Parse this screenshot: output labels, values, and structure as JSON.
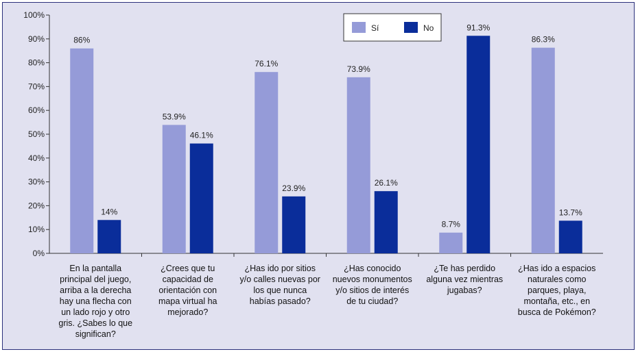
{
  "chart_data": {
    "type": "bar",
    "categories": [
      "En la pantalla\nprincipal del juego,\narriba a la derecha\nhay una flecha con\nun lado rojo y otro\ngris. ¿Sabes lo que\nsignifican?",
      "¿Crees que tu\ncapacidad de\norientación con\nmapa virtual ha\nmejorado?",
      "¿Has ido por sitios\ny/o calles nuevas por\nlos que nunca\nhabías pasado?",
      "¿Has conocido\nnuevos monumentos\ny/o sitios de interés\nde tu ciudad?",
      "¿Te has perdido\nalguna vez mientras\njugabas?",
      "¿Has ido a espacios\nnaturales como\nparques, playa,\nmontaña, etc., en\nbusca de Pokémon?"
    ],
    "series": [
      {
        "name": "Sí",
        "values": [
          86,
          53.9,
          76.1,
          73.9,
          8.7,
          86.3
        ],
        "labels": [
          "86%",
          "53.9%",
          "76.1%",
          "73.9%",
          "8.7%",
          "86.3%"
        ],
        "color": "#959bd8"
      },
      {
        "name": "No",
        "values": [
          14,
          46.1,
          23.9,
          26.1,
          91.3,
          13.7
        ],
        "labels": [
          "14%",
          "46.1%",
          "23.9%",
          "26.1%",
          "91.3%",
          "13.7%"
        ],
        "color": "#0a2d9a"
      }
    ],
    "yticks": [
      "0%",
      "10%",
      "20%",
      "30%",
      "40%",
      "50%",
      "60%",
      "70%",
      "80%",
      "90%",
      "100%"
    ],
    "ylim": [
      0,
      100
    ],
    "grid": false,
    "legend": "top-center"
  }
}
